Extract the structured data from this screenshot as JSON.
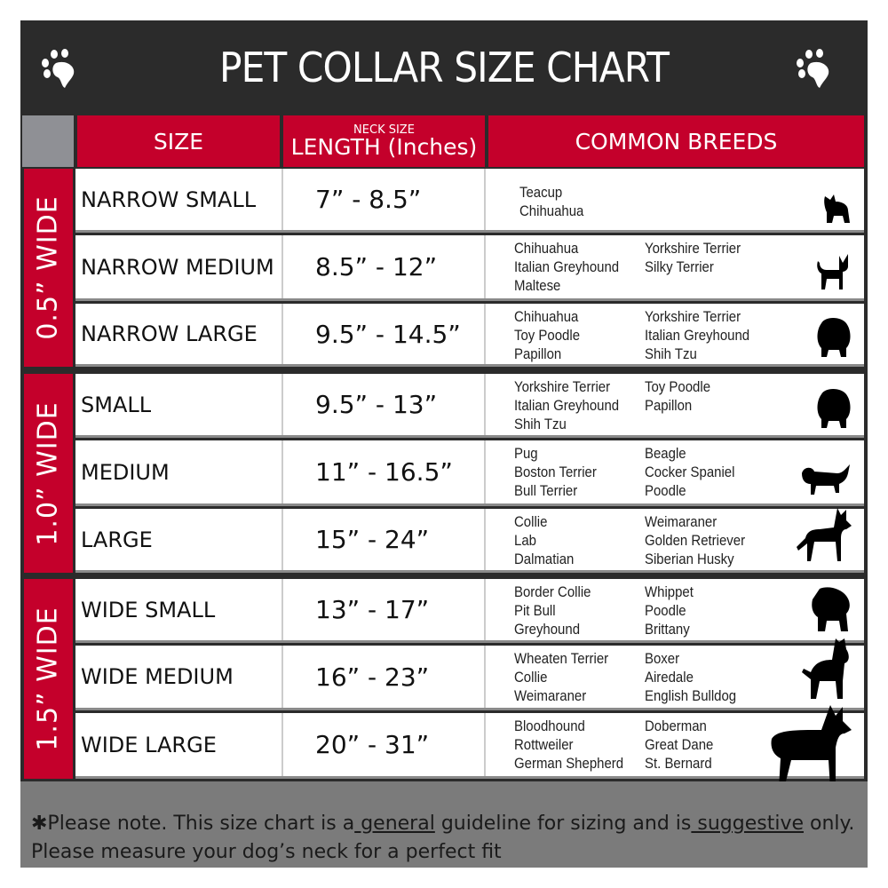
{
  "title": "PET COLLAR SIZE CHART",
  "headers": {
    "size": "SIZE",
    "neck_size": "NECK SIZE",
    "length": "LENGTH (Inches)",
    "breeds": "COMMON BREEDS"
  },
  "groups": [
    {
      "label": "0.5” WIDE"
    },
    {
      "label": "1.0” WIDE"
    },
    {
      "label": "1.5” WIDE"
    }
  ],
  "rows": [
    {
      "size": "NARROW SMALL",
      "length": "7” - 8.5”",
      "col1": "Teacup\nChihuahua",
      "col2": "",
      "icon": "yorkie-silhouette-icon"
    },
    {
      "size": "NARROW MEDIUM",
      "length": "8.5” - 12”",
      "col1": "Chihuahua\nItalian Greyhound\nMaltese",
      "col2": "Yorkshire Terrier\nSilky Terrier",
      "icon": "chihuahua-silhouette-icon"
    },
    {
      "size": "NARROW LARGE",
      "length": "9.5” - 14.5”",
      "col1": "Chihuahua\nToy Poodle\nPapillon",
      "col2": "Yorkshire Terrier\nItalian Greyhound\nShih Tzu",
      "icon": "pomeranian-silhouette-icon"
    },
    {
      "size": "SMALL",
      "length": "9.5” - 13”",
      "col1": "Yorkshire Terrier\nItalian Greyhound\nShih Tzu",
      "col2": "Toy Poodle\nPapillon",
      "icon": "pomeranian-silhouette-icon"
    },
    {
      "size": "MEDIUM",
      "length": "11” - 16.5”",
      "col1": "Pug\nBoston Terrier\nBull Terrier",
      "col2": "Beagle\nCocker Spaniel\nPoodle",
      "icon": "dachshund-silhouette-icon"
    },
    {
      "size": "LARGE",
      "length": "15” - 24”",
      "col1": "Collie\nLab\nDalmatian",
      "col2": "Weimaraner\nGolden Retriever\nSiberian Husky",
      "icon": "shepherd-silhouette-icon"
    },
    {
      "size": "WIDE SMALL",
      "length": "13” - 17”",
      "col1": "Border Collie\nPit Bull\nGreyhound",
      "col2": "Whippet\nPoodle\nBrittany",
      "icon": "bulldog-silhouette-icon"
    },
    {
      "size": "WIDE MEDIUM",
      "length": "16” - 23”",
      "col1": "Wheaten Terrier\nCollie\nWeimaraner",
      "col2": "Boxer\nAiredale\nEnglish Bulldog",
      "icon": "pitbull-silhouette-icon"
    },
    {
      "size": "WIDE LARGE",
      "length": "20” - 31”",
      "col1": "Bloodhound\nRottweiler\nGerman Shepherd",
      "col2": "Doberman\nGreat Dane\nSt. Bernard",
      "icon": "doberman-silhouette-icon"
    }
  ],
  "footer": {
    "part1": "✱Please note. This size chart is a",
    "general": " general",
    "part2": " guideline for sizing and is",
    "suggestive": " suggestive",
    "part3": " only.",
    "line2": "Please measure your dog’s neck for a perfect fit"
  },
  "colors": {
    "accent_red": "#c4002b",
    "dark": "#2b2b2b",
    "footer_gray": "#7b7b7b"
  }
}
